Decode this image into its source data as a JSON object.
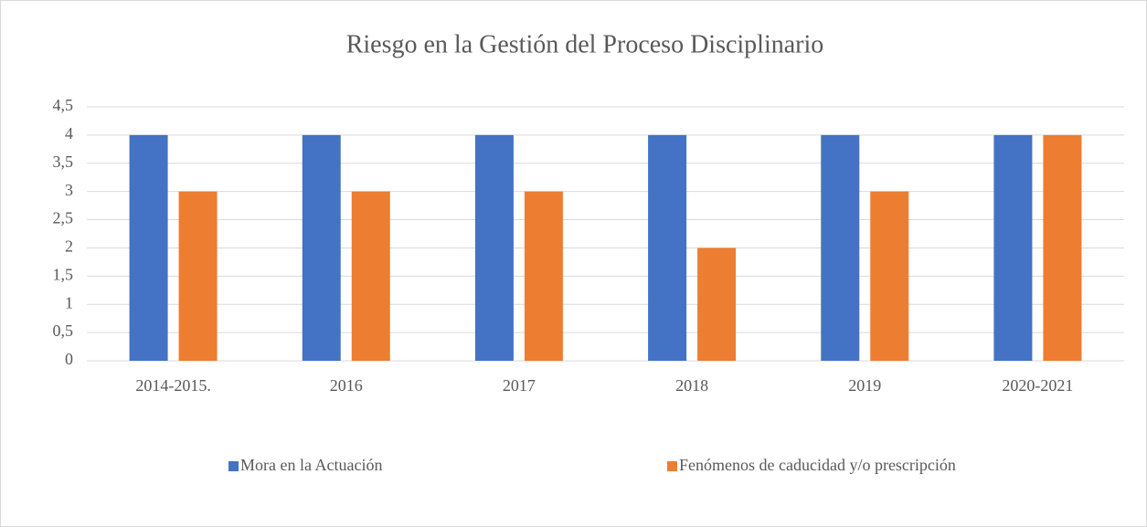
{
  "chart_data": {
    "type": "bar",
    "title": "Riesgo en la Gestión del Proceso Disciplinario",
    "categories": [
      "2014-2015.",
      "2016",
      "2017",
      "2018",
      "2019",
      "2020-2021"
    ],
    "series": [
      {
        "name": "Mora en la Actuación",
        "color": "#4472c4",
        "values": [
          4,
          4,
          4,
          4,
          4,
          4
        ]
      },
      {
        "name": "Fenómenos de caducidad y/o prescripción",
        "color": "#ed7d31",
        "values": [
          3,
          3,
          3,
          2,
          3,
          4
        ]
      }
    ],
    "ylim": [
      0,
      4.5
    ],
    "yticks": [
      0,
      {
        "value": 0.5,
        "label": "0,5"
      },
      1,
      {
        "value": 1.5,
        "label": "1,5"
      },
      2,
      {
        "value": 2.5,
        "label": "2,5"
      },
      3,
      {
        "value": 3.5,
        "label": "3,5"
      },
      4,
      {
        "value": 4.5,
        "label": "4,5"
      }
    ],
    "grid": true,
    "legend": "bottom"
  }
}
